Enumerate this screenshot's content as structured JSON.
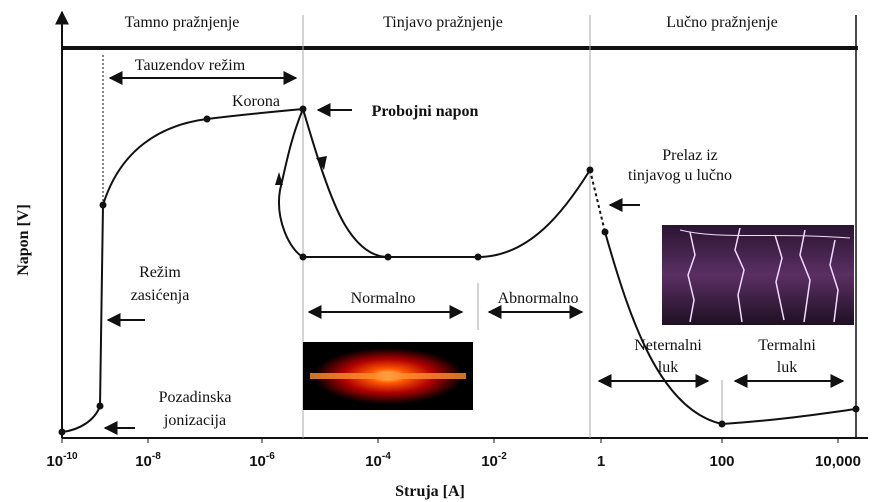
{
  "header": {
    "regions": [
      "Tamno pražnjenje",
      "Tinjavo pražnjenje",
      "Lučno pražnjenje"
    ]
  },
  "axes": {
    "y_label": "Napon [V]",
    "x_label": "Struja [A]",
    "x_ticks": [
      {
        "base": "10",
        "exp": "-10"
      },
      {
        "base": "10",
        "exp": "-8"
      },
      {
        "base": "10",
        "exp": "-6"
      },
      {
        "base": "10",
        "exp": "-4"
      },
      {
        "base": "10",
        "exp": "-2"
      },
      {
        "base": "1"
      },
      {
        "base": "100"
      },
      {
        "base": "10,000"
      }
    ]
  },
  "annotations": {
    "townsend": "Tauzendov režim",
    "corona": "Korona",
    "breakdown": "Probojni napon",
    "transition": [
      "Prelaz iz",
      "tinjavog u lučno"
    ],
    "saturation": [
      "Režim",
      "zasićenja"
    ],
    "background": [
      "Pozadinska",
      "jonizacija"
    ],
    "normal": "Normalno",
    "abnormal": "Abnormalno",
    "nonthermal": [
      "Neternalni",
      "luk"
    ],
    "thermal": [
      "Termalni",
      "luk"
    ]
  }
}
